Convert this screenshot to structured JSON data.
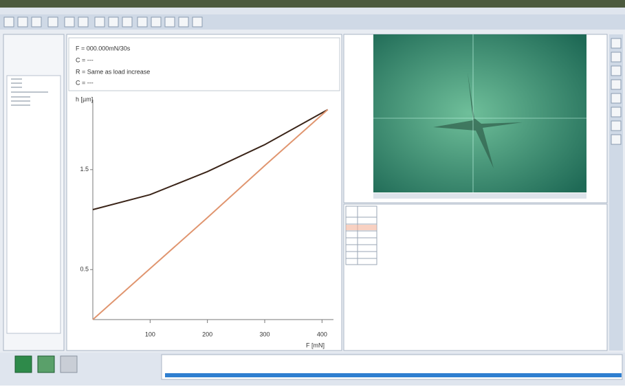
{
  "info": {
    "lines": [
      "F = 000.000mN/30s",
      "C = ---",
      "R = Same as load increase",
      "C = ---"
    ]
  },
  "chart_data": {
    "type": "line",
    "y_label": "h [µm]",
    "x_label": "F [mN]",
    "x": [
      0,
      100,
      200,
      300,
      410
    ],
    "series": [
      {
        "color": "#3a2418",
        "values": [
          1.1,
          1.25,
          1.48,
          1.75,
          2.1
        ]
      },
      {
        "color": "#e0956f",
        "values": [
          0,
          0.51,
          1.02,
          1.54,
          2.1
        ]
      }
    ],
    "xlim": [
      0,
      420
    ],
    "ylim": [
      0,
      2.2
    ],
    "xticks": [
      100,
      200,
      300,
      400
    ],
    "yticks": [
      0.5,
      1.5
    ]
  }
}
